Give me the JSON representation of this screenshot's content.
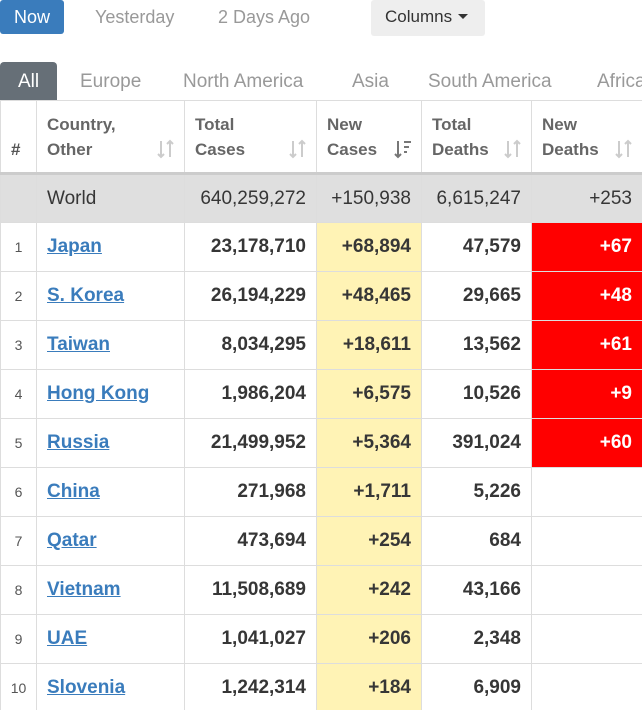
{
  "day_tabs": [
    {
      "label": "Now",
      "active": true
    },
    {
      "label": "Yesterday",
      "active": false
    },
    {
      "label": "2 Days Ago",
      "active": false
    }
  ],
  "columns_button": {
    "label": "Columns"
  },
  "region_tabs": [
    {
      "label": "All",
      "active": true
    },
    {
      "label": "Europe",
      "active": false
    },
    {
      "label": "North America",
      "active": false
    },
    {
      "label": "Asia",
      "active": false
    },
    {
      "label": "South America",
      "active": false
    },
    {
      "label": "Africa",
      "active": false
    }
  ],
  "table": {
    "headers": {
      "index": "#",
      "country_line1": "Country,",
      "country_line2": "Other",
      "total_cases_line1": "Total",
      "total_cases_line2": "Cases",
      "new_cases_line1": "New",
      "new_cases_line2": "Cases",
      "total_deaths_line1": "Total",
      "total_deaths_line2": "Deaths",
      "new_deaths_line1": "New",
      "new_deaths_line2": "Deaths"
    },
    "world": {
      "country": "World",
      "total_cases": "640,259,272",
      "new_cases": "+150,938",
      "total_deaths": "6,615,247",
      "new_deaths": "+253"
    },
    "rows": [
      {
        "index": "1",
        "country": "Japan",
        "total_cases": "23,178,710",
        "new_cases": "+68,894",
        "total_deaths": "47,579",
        "new_deaths": "+67"
      },
      {
        "index": "2",
        "country": "S. Korea",
        "total_cases": "26,194,229",
        "new_cases": "+48,465",
        "total_deaths": "29,665",
        "new_deaths": "+48"
      },
      {
        "index": "3",
        "country": "Taiwan",
        "total_cases": "8,034,295",
        "new_cases": "+18,611",
        "total_deaths": "13,562",
        "new_deaths": "+61"
      },
      {
        "index": "4",
        "country": "Hong Kong",
        "total_cases": "1,986,204",
        "new_cases": "+6,575",
        "total_deaths": "10,526",
        "new_deaths": "+9"
      },
      {
        "index": "5",
        "country": "Russia",
        "total_cases": "21,499,952",
        "new_cases": "+5,364",
        "total_deaths": "391,024",
        "new_deaths": "+60"
      },
      {
        "index": "6",
        "country": "China",
        "total_cases": "271,968",
        "new_cases": "+1,711",
        "total_deaths": "5,226",
        "new_deaths": ""
      },
      {
        "index": "7",
        "country": "Qatar",
        "total_cases": "473,694",
        "new_cases": "+254",
        "total_deaths": "684",
        "new_deaths": ""
      },
      {
        "index": "8",
        "country": "Vietnam",
        "total_cases": "11,508,689",
        "new_cases": "+242",
        "total_deaths": "43,166",
        "new_deaths": ""
      },
      {
        "index": "9",
        "country": "UAE",
        "total_cases": "1,041,027",
        "new_cases": "+206",
        "total_deaths": "2,348",
        "new_deaths": ""
      },
      {
        "index": "10",
        "country": "Slovenia",
        "total_cases": "1,242,314",
        "new_cases": "+184",
        "total_deaths": "6,909",
        "new_deaths": ""
      }
    ]
  },
  "colors": {
    "accent_blue": "#3a7cbc",
    "active_region_tab": "#666f77",
    "new_cases_bg": "#fff3b5",
    "new_deaths_bg": "#ff0000",
    "world_row_bg": "#dfdfdf"
  },
  "icons": {
    "sort": "sort-arrows-icon",
    "sort_active": "sort-desc-icon",
    "columns_caret": "caret-down-icon"
  }
}
